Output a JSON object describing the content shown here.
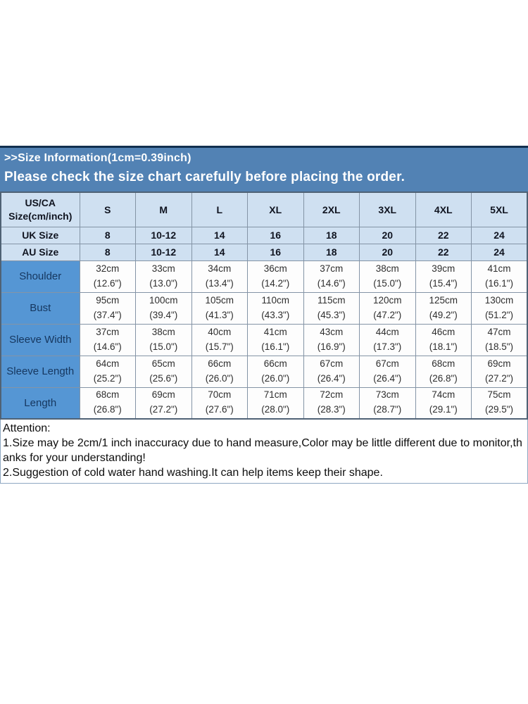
{
  "banner": {
    "title": ">>Size Information(1cm=0.39inch)",
    "subtitle": "Please check the size chart carefully before placing the order."
  },
  "size_table": {
    "corner_header": "US/CA Size(cm/inch)",
    "size_headers": [
      "S",
      "M",
      "L",
      "XL",
      "2XL",
      "3XL",
      "4XL",
      "5XL"
    ],
    "size_rows": [
      {
        "label": "UK Size",
        "values": [
          "8",
          "10-12",
          "14",
          "16",
          "18",
          "20",
          "22",
          "24"
        ]
      },
      {
        "label": "AU Size",
        "values": [
          "8",
          "10-12",
          "14",
          "16",
          "18",
          "20",
          "22",
          "24"
        ]
      }
    ],
    "measurement_rows": [
      {
        "label": "Shoulder",
        "values": [
          "32cm\n(12.6\")",
          "33cm\n(13.0\")",
          "34cm\n(13.4\")",
          "36cm\n(14.2\")",
          "37cm\n(14.6\")",
          "38cm\n(15.0\")",
          "39cm\n(15.4\")",
          "41cm\n(16.1\")"
        ]
      },
      {
        "label": "Bust",
        "values": [
          "95cm\n(37.4\")",
          "100cm\n(39.4\")",
          "105cm\n(41.3\")",
          "110cm\n(43.3\")",
          "115cm\n(45.3\")",
          "120cm\n(47.2\")",
          "125cm\n(49.2\")",
          "130cm\n(51.2\")"
        ]
      },
      {
        "label": "Sleeve Width",
        "values": [
          "37cm\n(14.6\")",
          "38cm\n(15.0\")",
          "40cm\n(15.7\")",
          "41cm\n(16.1\")",
          "43cm\n(16.9\")",
          "44cm\n(17.3\")",
          "46cm\n(18.1\")",
          "47cm\n(18.5\")"
        ]
      },
      {
        "label": "Sleeve Length",
        "values": [
          "64cm\n(25.2\")",
          "65cm\n(25.6\")",
          "66cm\n(26.0\")",
          "66cm\n(26.0\")",
          "67cm\n(26.4\")",
          "67cm\n(26.4\")",
          "68cm\n(26.8\")",
          "69cm\n(27.2\")"
        ]
      },
      {
        "label": "Length",
        "values": [
          "68cm\n(26.8\")",
          "69cm\n(27.2\")",
          "70cm\n(27.6\")",
          "71cm\n(28.0\")",
          "72cm\n(28.3\")",
          "73cm\n(28.7\")",
          "74cm\n(29.1\")",
          "75cm\n(29.5\")"
        ]
      }
    ]
  },
  "attention": {
    "heading": "Attention:",
    "line1": "1.Size may be 2cm/1 inch inaccuracy due to hand measure,Color may be little different due to monitor,thanks for your understanding!",
    "line2": "2.Suggestion of cold water hand washing.It can help items keep their shape."
  },
  "colors": {
    "banner_bg": "#5282b4",
    "banner_top_border": "#12304f",
    "header_row_bg": "#cfe0f1",
    "label_column_bg": "#5596d4",
    "label_text": "#16375f",
    "table_border": "#8494a6",
    "cell_bg": "#fdfdfd"
  }
}
